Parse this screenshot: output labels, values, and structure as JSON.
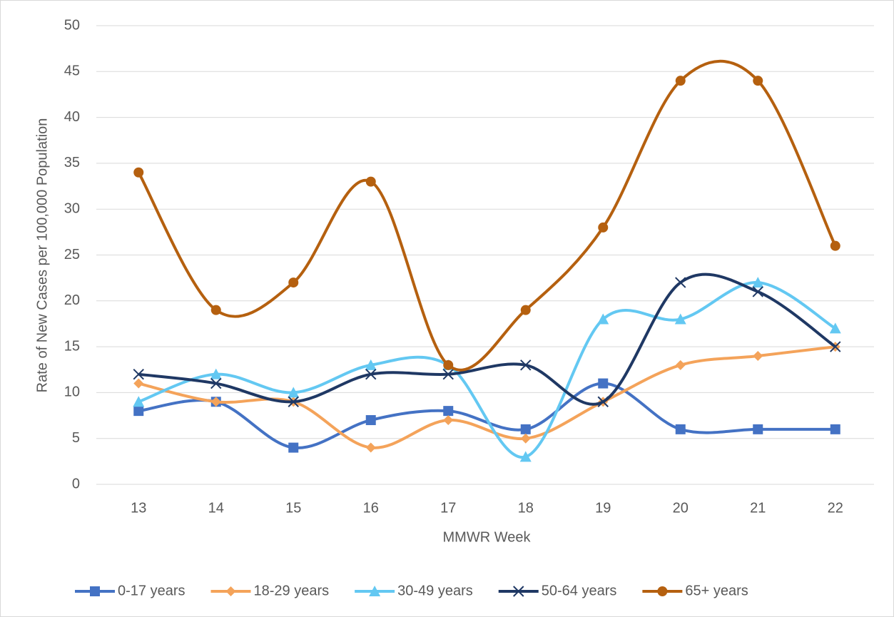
{
  "chart_data": {
    "type": "line",
    "smooth": true,
    "x_label": "MMWR Week",
    "y_label": "Rate of New Cases per 100,000 Population",
    "categories": [
      "13",
      "14",
      "15",
      "16",
      "17",
      "18",
      "19",
      "20",
      "21",
      "22"
    ],
    "series": [
      {
        "name": "0-17 years",
        "color": "#4472c4",
        "marker": "square",
        "values": [
          8,
          9,
          4,
          7,
          8,
          6,
          11,
          6,
          6,
          6
        ]
      },
      {
        "name": "18-29 years",
        "color": "#f4a35a",
        "marker": "diamond",
        "values": [
          11,
          9,
          9,
          4,
          7,
          5,
          9,
          13,
          14,
          15
        ]
      },
      {
        "name": "30-49 years",
        "color": "#63c8f2",
        "marker": "triangle",
        "values": [
          9,
          12,
          10,
          13,
          13,
          3,
          18,
          18,
          22,
          17
        ]
      },
      {
        "name": "50-64 years",
        "color": "#1f3864",
        "marker": "x",
        "values": [
          12,
          11,
          9,
          12,
          12,
          13,
          9,
          22,
          21,
          15
        ]
      },
      {
        "name": "65+ years",
        "color": "#b5600f",
        "marker": "circle",
        "values": [
          34,
          19,
          22,
          33,
          13,
          19,
          28,
          44,
          44,
          26
        ]
      }
    ],
    "ylim": [
      0,
      50
    ],
    "yticks": [
      0,
      5,
      10,
      15,
      20,
      25,
      30,
      35,
      40,
      45,
      50
    ],
    "grid": true,
    "legend": "bottom"
  }
}
